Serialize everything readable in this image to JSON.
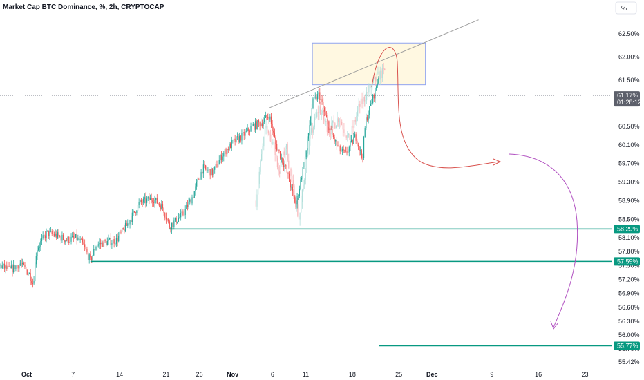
{
  "chart_data": {
    "type": "candlestick",
    "title": "Market Cap BTC Dominance, %, 2h, CRYPTOCAP",
    "unit_button": "%",
    "colors": {
      "up": "#26a69a",
      "down": "#ef5350",
      "projection_up": "#b2dfdb",
      "projection_down": "#f8b4b7",
      "support": "#089981",
      "resistance_box": "#fff8e1",
      "resistance_box_border": "#90a4f0",
      "curve_red": "#d9534f",
      "curve_purple": "#b04fc0",
      "trendline": "#9e9e9e",
      "price_tag": "#5d606b"
    },
    "y_axis": {
      "range": [
        55.3,
        62.9
      ],
      "tick_labels": [
        "62.50%",
        "62.00%",
        "61.50%",
        "60.50%",
        "60.10%",
        "59.70%",
        "59.30%",
        "58.90%",
        "58.50%",
        "58.10%",
        "57.80%",
        "57.50%",
        "57.20%",
        "56.90%",
        "56.60%",
        "56.30%",
        "56.00%",
        "55.70%",
        "55.42%"
      ],
      "tick_values": [
        62.5,
        62.0,
        61.5,
        60.5,
        60.1,
        59.7,
        59.3,
        58.9,
        58.5,
        58.1,
        57.8,
        57.5,
        57.2,
        56.9,
        56.6,
        56.3,
        56.0,
        55.7,
        55.42
      ]
    },
    "x_axis": {
      "tick_labels": [
        "Oct",
        "7",
        "14",
        "21",
        "26",
        "Nov",
        "6",
        "11",
        "18",
        "25",
        "Dec",
        "9",
        "16",
        "23"
      ],
      "tick_days": [
        0,
        7,
        14,
        21,
        26,
        31,
        37,
        42,
        49,
        56,
        61,
        70,
        77,
        84
      ],
      "bold_labels": [
        "Oct",
        "Nov",
        "Dec"
      ],
      "range_days": [
        -4,
        88
      ]
    },
    "current_price": {
      "value_label": "61.17%",
      "countdown": "01:28:12",
      "value": 61.17
    },
    "support_levels": [
      {
        "label": "58.29%",
        "value": 58.29,
        "start_day": 21.5
      },
      {
        "label": "57.59%",
        "value": 57.59,
        "start_day": 9.6
      },
      {
        "label": "55.77%",
        "value": 55.77,
        "start_day": 53.0
      }
    ],
    "resistance_zone": {
      "day_start": 43,
      "day_end": 60,
      "low": 61.4,
      "high": 62.3
    },
    "trendline": {
      "from": [
        36.5,
        60.9
      ],
      "to": [
        68,
        62.8
      ]
    },
    "price_path": [
      [
        -4.0,
        57.5
      ],
      [
        -2.5,
        57.4
      ],
      [
        -1.0,
        57.55
      ],
      [
        0.5,
        57.3
      ],
      [
        1.0,
        57.1
      ],
      [
        1.5,
        57.85
      ],
      [
        3.0,
        58.2
      ],
      [
        4.5,
        58.15
      ],
      [
        6.0,
        58.05
      ],
      [
        7.5,
        58.1
      ],
      [
        8.5,
        57.95
      ],
      [
        9.6,
        57.6
      ],
      [
        10.5,
        57.95
      ],
      [
        12.0,
        58.0
      ],
      [
        13.5,
        58.05
      ],
      [
        15.0,
        58.35
      ],
      [
        17.0,
        58.85
      ],
      [
        19.0,
        58.95
      ],
      [
        20.5,
        58.75
      ],
      [
        21.5,
        58.35
      ],
      [
        23.5,
        58.6
      ],
      [
        25.0,
        59.0
      ],
      [
        26.5,
        59.6
      ],
      [
        28.0,
        59.5
      ],
      [
        29.5,
        59.9
      ],
      [
        31.0,
        60.15
      ],
      [
        32.5,
        60.3
      ],
      [
        34.0,
        60.5
      ],
      [
        35.5,
        60.6
      ],
      [
        36.5,
        60.75
      ],
      [
        37.5,
        60.1
      ],
      [
        39.0,
        59.6
      ],
      [
        40.5,
        58.8
      ],
      [
        42.0,
        59.9
      ],
      [
        43.0,
        61.0
      ],
      [
        44.0,
        61.2
      ],
      [
        45.0,
        60.7
      ],
      [
        46.0,
        60.3
      ],
      [
        47.0,
        60.0
      ],
      [
        48.0,
        59.9
      ],
      [
        49.5,
        60.3
      ],
      [
        50.5,
        59.8
      ],
      [
        51.0,
        60.6
      ],
      [
        52.5,
        61.3
      ],
      [
        53.0,
        61.6
      ]
    ],
    "projection_path": [
      [
        34.5,
        58.9
      ],
      [
        35.0,
        59.5
      ],
      [
        36.0,
        60.5
      ],
      [
        37.0,
        60.2
      ],
      [
        38.0,
        59.5
      ],
      [
        39.0,
        60.1
      ],
      [
        40.0,
        59.2
      ],
      [
        41.0,
        58.5
      ],
      [
        42.5,
        60.2
      ],
      [
        44.0,
        60.9
      ],
      [
        45.5,
        60.4
      ],
      [
        47.0,
        60.7
      ],
      [
        48.5,
        60.2
      ],
      [
        50.0,
        60.9
      ],
      [
        51.5,
        61.3
      ],
      [
        53.0,
        61.6
      ],
      [
        54.0,
        61.7
      ]
    ]
  }
}
